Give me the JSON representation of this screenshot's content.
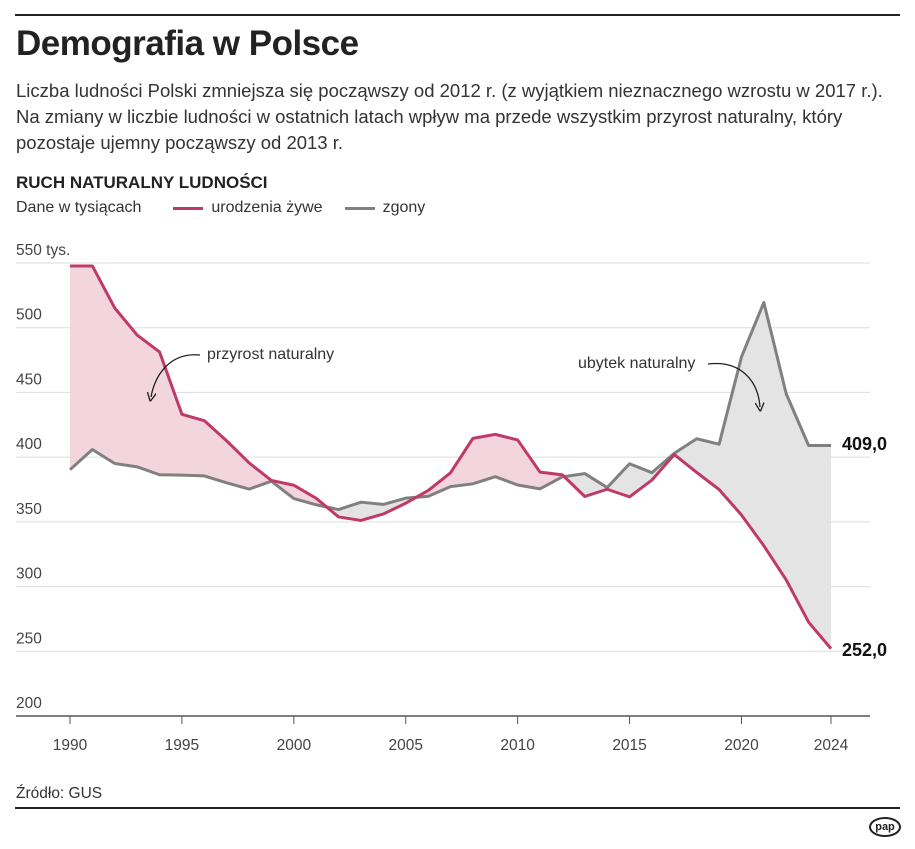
{
  "title": "Demografia w Polsce",
  "lead": "Liczba ludności Polski zmniejsza się począwszy od 2012 r. (z wyjątkiem nieznacznego wzrostu w 2017 r.). Na zmiany w liczbie ludności w ostatnich latach wpływ ma przede wszystkim przyrost naturalny, który pozostaje ujemny począwszy od 2013 r.",
  "source": "Źródło: GUS",
  "logo": "pap",
  "chart_data": {
    "type": "line",
    "title": "RUCH NATURALNY LUDNOŚCI",
    "subtitle": "Dane w tysiącach",
    "ylim": [
      200,
      550
    ],
    "yticks": [
      "550 tys.",
      "500",
      "450",
      "400",
      "350",
      "300",
      "250",
      "200"
    ],
    "ytick_values": [
      550,
      500,
      450,
      400,
      350,
      300,
      250,
      200
    ],
    "xticks": [
      1990,
      1995,
      2000,
      2005,
      2010,
      2015,
      2020,
      2024
    ],
    "grid": true,
    "legend": "top-left",
    "x": [
      1990,
      1991,
      1992,
      1993,
      1994,
      1995,
      1996,
      1997,
      1998,
      1999,
      2000,
      2001,
      2002,
      2003,
      2004,
      2005,
      2006,
      2007,
      2008,
      2009,
      2010,
      2011,
      2012,
      2013,
      2014,
      2015,
      2016,
      2017,
      2018,
      2019,
      2020,
      2021,
      2022,
      2023,
      2024
    ],
    "series": [
      {
        "name": "urodzenia żywe",
        "color": "#c0396b",
        "values": [
          547.7,
          547.7,
          515.2,
          494.3,
          481.3,
          433.1,
          428.2,
          412.6,
          395.6,
          382.0,
          378.3,
          368.2,
          353.8,
          351.1,
          356.1,
          364.4,
          374.2,
          387.9,
          414.5,
          417.6,
          413.3,
          388.4,
          386.3,
          369.6,
          375.2,
          369.3,
          382.3,
          402.0,
          388.2,
          375.0,
          355.3,
          331.5,
          305.1,
          272.5,
          252.0
        ]
      },
      {
        "name": "zgony",
        "color": "#808080",
        "values": [
          390.3,
          405.9,
          395.1,
          392.5,
          386.4,
          386.1,
          385.5,
          380.2,
          375.3,
          381.4,
          368.0,
          363.2,
          359.5,
          365.2,
          363.5,
          368.3,
          369.7,
          377.2,
          379.4,
          384.9,
          378.5,
          375.5,
          384.8,
          387.3,
          376.5,
          394.9,
          388.0,
          403.0,
          414.2,
          410.0,
          477.4,
          519.5,
          448.9,
          409.0,
          409.0
        ]
      }
    ],
    "end_labels": [
      "409,0",
      "252,0"
    ],
    "annotations": [
      "przyrost naturalny",
      "ubytek naturalny"
    ],
    "fill_colors": {
      "surplus": "#f3d6dd",
      "deficit": "#e4e4e4"
    }
  }
}
